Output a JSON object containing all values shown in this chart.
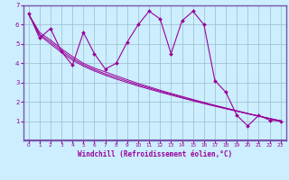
{
  "xlabel": "Windchill (Refroidissement éolien,°C)",
  "bg_color": "#cceeff",
  "line_color": "#990099",
  "grid_color": "#99bbcc",
  "spine_color": "#7755aa",
  "xlim": [
    -0.5,
    23.5
  ],
  "ylim": [
    0,
    7
  ],
  "xticks": [
    0,
    1,
    2,
    3,
    4,
    5,
    6,
    7,
    8,
    9,
    10,
    11,
    12,
    13,
    14,
    15,
    16,
    17,
    18,
    19,
    20,
    21,
    22,
    23
  ],
  "yticks": [
    1,
    2,
    3,
    4,
    5,
    6,
    7
  ],
  "line1_x": [
    0,
    1,
    2,
    3,
    4,
    5,
    6,
    7,
    8,
    9,
    10,
    11,
    12,
    13,
    14,
    15,
    16,
    17,
    18,
    19,
    20,
    21,
    22,
    23
  ],
  "line1_y": [
    6.6,
    5.3,
    5.8,
    4.6,
    3.9,
    5.6,
    4.5,
    3.7,
    4.0,
    5.1,
    6.0,
    6.7,
    6.3,
    4.5,
    6.2,
    6.7,
    6.0,
    3.1,
    2.5,
    1.3,
    0.75,
    1.3,
    1.05,
    1.0
  ],
  "line2_x": [
    0,
    1,
    2,
    3,
    4,
    5,
    6,
    7,
    8,
    9,
    10,
    11,
    12,
    13,
    14,
    15,
    16,
    17,
    18,
    19,
    20,
    21,
    22,
    23
  ],
  "line2_y": [
    6.55,
    5.6,
    5.2,
    4.75,
    4.35,
    4.0,
    3.75,
    3.55,
    3.35,
    3.15,
    2.95,
    2.78,
    2.6,
    2.44,
    2.28,
    2.12,
    1.97,
    1.82,
    1.68,
    1.54,
    1.4,
    1.27,
    1.14,
    1.02
  ],
  "line3_x": [
    0,
    1,
    2,
    3,
    4,
    5,
    6,
    7,
    8,
    9,
    10,
    11,
    12,
    13,
    14,
    15,
    16,
    17,
    18,
    19,
    20,
    21,
    22,
    23
  ],
  "line3_y": [
    6.55,
    5.5,
    5.1,
    4.65,
    4.25,
    3.92,
    3.67,
    3.45,
    3.26,
    3.07,
    2.88,
    2.72,
    2.55,
    2.39,
    2.24,
    2.09,
    1.94,
    1.8,
    1.66,
    1.52,
    1.39,
    1.26,
    1.13,
    1.01
  ],
  "line4_x": [
    0,
    1,
    2,
    3,
    4,
    5,
    6,
    7,
    8,
    9,
    10,
    11,
    12,
    13,
    14,
    15,
    16,
    17,
    18,
    19,
    20,
    21,
    22,
    23
  ],
  "line4_y": [
    6.55,
    5.45,
    5.0,
    4.56,
    4.16,
    3.85,
    3.6,
    3.38,
    3.18,
    3.0,
    2.82,
    2.66,
    2.5,
    2.35,
    2.2,
    2.05,
    1.91,
    1.77,
    1.64,
    1.51,
    1.38,
    1.25,
    1.13,
    1.01
  ]
}
